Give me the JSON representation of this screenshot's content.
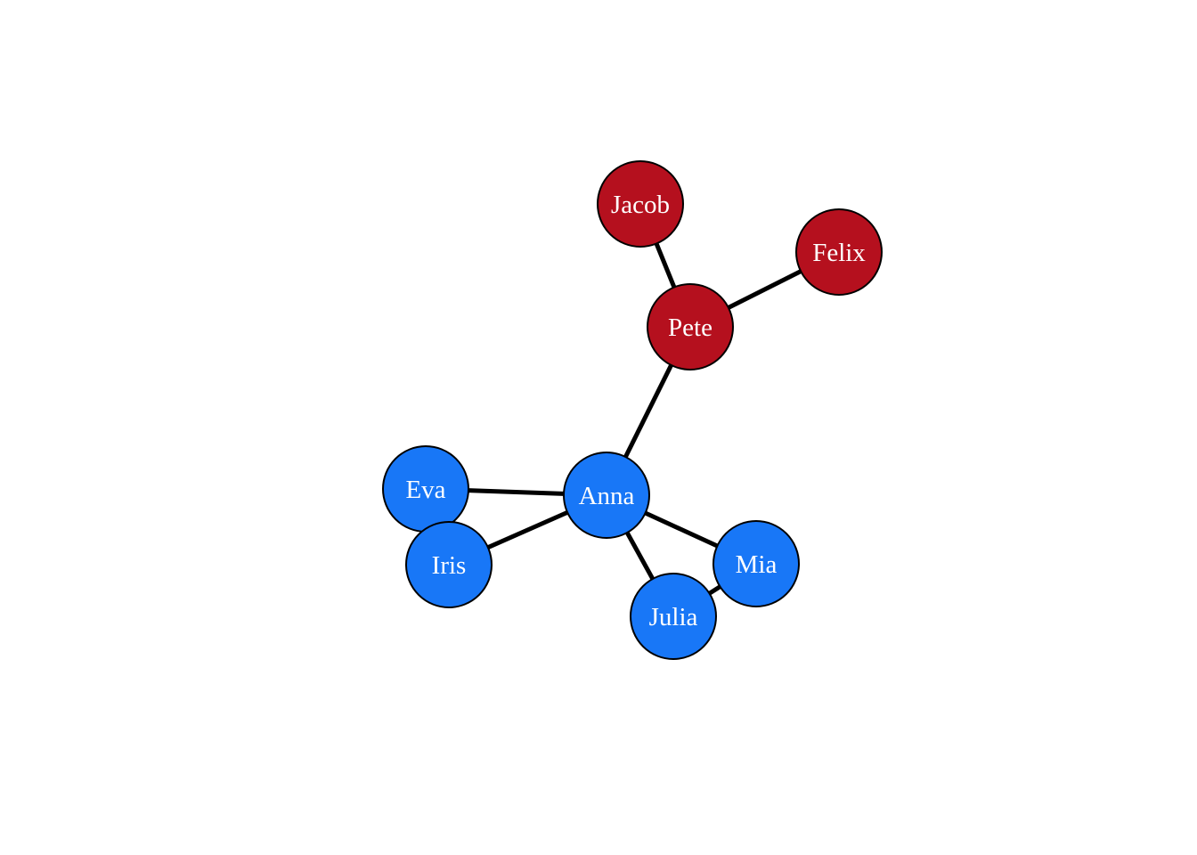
{
  "graph": {
    "groups": {
      "red": {
        "color": "#B5101E"
      },
      "blue": {
        "color": "#1877F7"
      }
    },
    "nodes": [
      {
        "id": "jacob",
        "label": "Jacob",
        "group": "red"
      },
      {
        "id": "felix",
        "label": "Felix",
        "group": "red"
      },
      {
        "id": "pete",
        "label": "Pete",
        "group": "red"
      },
      {
        "id": "anna",
        "label": "Anna",
        "group": "blue"
      },
      {
        "id": "eva",
        "label": "Eva",
        "group": "blue"
      },
      {
        "id": "iris",
        "label": "Iris",
        "group": "blue"
      },
      {
        "id": "mia",
        "label": "Mia",
        "group": "blue"
      },
      {
        "id": "julia",
        "label": "Julia",
        "group": "blue"
      }
    ],
    "edges": [
      {
        "source": "jacob",
        "target": "pete"
      },
      {
        "source": "felix",
        "target": "pete"
      },
      {
        "source": "pete",
        "target": "anna"
      },
      {
        "source": "anna",
        "target": "eva"
      },
      {
        "source": "anna",
        "target": "iris"
      },
      {
        "source": "anna",
        "target": "mia"
      },
      {
        "source": "anna",
        "target": "julia"
      },
      {
        "source": "mia",
        "target": "julia"
      }
    ]
  }
}
